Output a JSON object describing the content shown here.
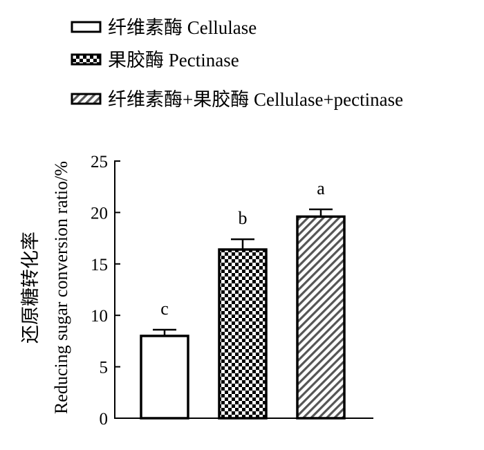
{
  "chart_data": {
    "type": "bar",
    "categories": [
      "纤维素酶 Cellulase",
      "果胶酶 Pectinase",
      "纤维素酶+果胶酶 Cellulase+pectinase"
    ],
    "series": [
      {
        "name": "纤维素酶 Cellulase",
        "value": 8.0,
        "error": 0.6,
        "label": "c",
        "pattern": "white"
      },
      {
        "name": "果胶酶 Pectinase",
        "value": 16.4,
        "error": 1.0,
        "label": "b",
        "pattern": "checker"
      },
      {
        "name": "纤维素酶+果胶酶 Cellulase+pectinase",
        "value": 19.6,
        "error": 0.7,
        "label": "a",
        "pattern": "hatch"
      }
    ],
    "title": "",
    "xlabel": "",
    "ylabel_cn": "还原糖转化率",
    "ylabel_en": "Reducing sugar conversion ratio/%",
    "ylim": [
      0,
      25
    ],
    "yticks": [
      0,
      5,
      10,
      15,
      20,
      25
    ],
    "grid": false,
    "legend_position": "top-left"
  }
}
